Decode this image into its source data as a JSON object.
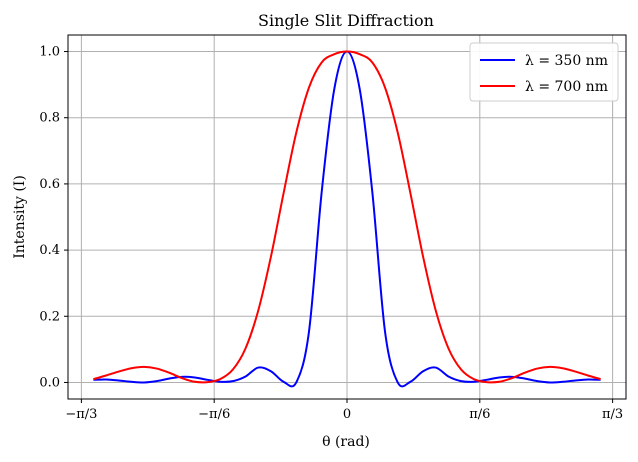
{
  "chart_data": {
    "type": "line",
    "title": "Single Slit Diffraction",
    "xlabel": "θ (rad)",
    "ylabel": "Intensity (I)",
    "xlim": [
      -1.1,
      1.1
    ],
    "ylim": [
      -0.05,
      1.05
    ],
    "grid": true,
    "legend_placement": "top-right",
    "x_ticks": [
      {
        "value": -1.0472,
        "label": "−π/3"
      },
      {
        "value": -0.5236,
        "label": "−π/6"
      },
      {
        "value": 0,
        "label": "0"
      },
      {
        "value": 0.5236,
        "label": "π/6"
      },
      {
        "value": 1.0472,
        "label": "π/3"
      }
    ],
    "y_ticks": [
      {
        "value": 0.0,
        "label": "0.0"
      },
      {
        "value": 0.2,
        "label": "0.2"
      },
      {
        "value": 0.4,
        "label": "0.4"
      },
      {
        "value": 0.6,
        "label": "0.6"
      },
      {
        "value": 0.8,
        "label": "0.8"
      },
      {
        "value": 1.0,
        "label": "1.0"
      }
    ],
    "x": [
      -1.0,
      -0.95,
      -0.9,
      -0.85,
      -0.8,
      -0.75,
      -0.7,
      -0.65,
      -0.6,
      -0.55,
      -0.5,
      -0.45,
      -0.4,
      -0.35,
      -0.3,
      -0.25,
      -0.2,
      -0.15,
      -0.1,
      -0.05,
      0.0,
      0.05,
      0.1,
      0.15,
      0.2,
      0.25,
      0.3,
      0.35,
      0.4,
      0.45,
      0.5,
      0.55,
      0.6,
      0.65,
      0.7,
      0.75,
      0.8,
      0.85,
      0.9,
      0.95,
      1.0
    ],
    "series": [
      {
        "name": "λ = 350 nm",
        "color": "#0000ff",
        "values": [
          0.008,
          0.009,
          0.006,
          0.002,
          0.0,
          0.004,
          0.012,
          0.017,
          0.015,
          0.008,
          0.002,
          0.004,
          0.018,
          0.045,
          0.034,
          0.002,
          0.0,
          0.153,
          0.574,
          0.887,
          1.0,
          0.887,
          0.574,
          0.153,
          0.0,
          0.002,
          0.034,
          0.045,
          0.018,
          0.004,
          0.002,
          0.008,
          0.015,
          0.017,
          0.012,
          0.004,
          0.0,
          0.002,
          0.006,
          0.009,
          0.008
        ]
      },
      {
        "name": "λ = 700 nm",
        "color": "#ff0000",
        "values": [
          0.01,
          0.021,
          0.033,
          0.043,
          0.047,
          0.042,
          0.029,
          0.013,
          0.002,
          0.001,
          0.01,
          0.039,
          0.103,
          0.217,
          0.38,
          0.572,
          0.755,
          0.891,
          0.967,
          0.992,
          1.0,
          0.992,
          0.967,
          0.891,
          0.755,
          0.572,
          0.38,
          0.217,
          0.103,
          0.039,
          0.01,
          0.001,
          0.002,
          0.013,
          0.029,
          0.042,
          0.047,
          0.043,
          0.033,
          0.021,
          0.01
        ]
      }
    ]
  }
}
